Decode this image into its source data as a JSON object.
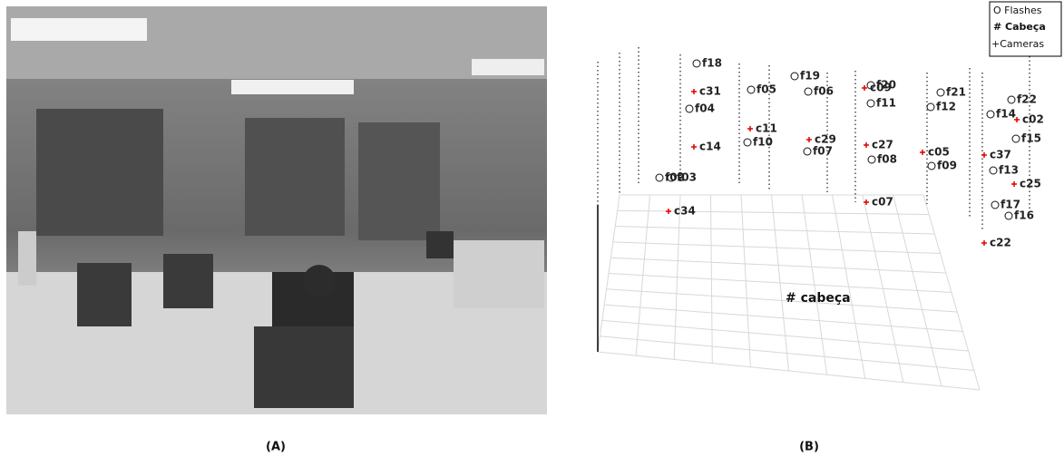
{
  "photo": {
    "caption": "(A)"
  },
  "plot": {
    "caption": "(B)",
    "legend": [
      "O Flashes",
      "# Cabeça",
      "+Cameras"
    ],
    "flashes": [
      "f18",
      "f19",
      "f05",
      "f06",
      "f20",
      "f21",
      "f22",
      "f04",
      "f11",
      "f12",
      "f14",
      "f15",
      "f10",
      "f07",
      "f08",
      "f09",
      "f13",
      "f02",
      "f03",
      "f17",
      "f16"
    ],
    "cameras": [
      "c09",
      "c31",
      "c02",
      "c11",
      "c29",
      "c14",
      "c27",
      "c05",
      "c37",
      "c25",
      "c07",
      "c34",
      "c22"
    ],
    "head": "# cabeça"
  }
}
